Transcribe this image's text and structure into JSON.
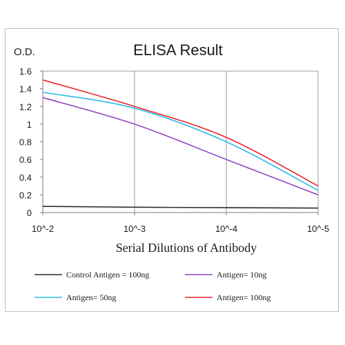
{
  "chart_data": {
    "type": "line",
    "title": "ELISA Result",
    "ylabel": "O.D.",
    "xlabel": "Serial Dilutions  of Antibody",
    "x_ticks": [
      "10^-2",
      "10^-3",
      "10^-4",
      "10^-5"
    ],
    "x_scale": "log",
    "x": [
      0.01,
      0.001,
      0.0001,
      1e-05
    ],
    "y_ticks": [
      "0",
      "0.2",
      "0.4",
      "0.6",
      "0.8",
      "1",
      "1.2",
      "1.4",
      "1.6"
    ],
    "ylim": [
      0,
      1.6
    ],
    "grid": {
      "vertical": true,
      "horizontal": false
    },
    "legend_position": "bottom",
    "series": [
      {
        "name": "Control Antigen = 100ng",
        "color": "#2b2b2b",
        "values": [
          0.07,
          0.06,
          0.055,
          0.05
        ]
      },
      {
        "name": "Antigen= 10ng",
        "color": "#8e44c4",
        "values": [
          1.3,
          1.0,
          0.6,
          0.2
        ]
      },
      {
        "name": "Antigen= 50ng",
        "color": "#2ab8e8",
        "values": [
          1.36,
          1.18,
          0.8,
          0.25
        ]
      },
      {
        "name": "Antigen= 100ng",
        "color": "#e8232b",
        "values": [
          1.5,
          1.2,
          0.85,
          0.3
        ]
      }
    ]
  }
}
